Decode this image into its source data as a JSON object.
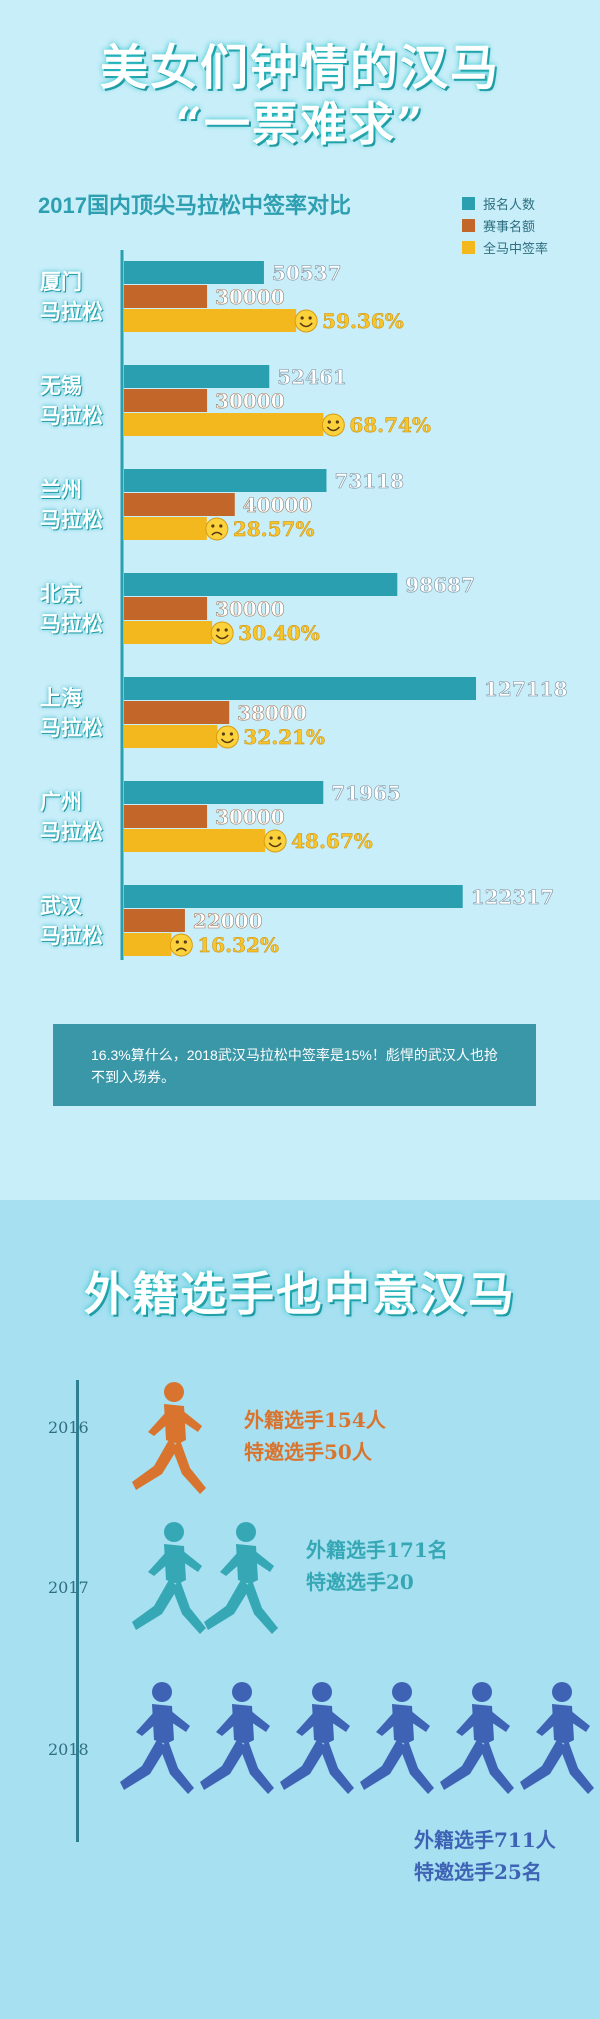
{
  "header": {
    "title_line1": "美女们钟情的汉马",
    "title_line2": "“一票难求”"
  },
  "chart_data": {
    "type": "bar",
    "title": "2017国内顶尖马拉松中签率对比",
    "legend_position": "top-right",
    "categories": [
      [
        "厦门",
        "马拉松"
      ],
      [
        "无锡",
        "马拉松"
      ],
      [
        "兰州",
        "马拉松"
      ],
      [
        "北京",
        "马拉松"
      ],
      [
        "上海",
        "马拉松"
      ],
      [
        "广州",
        "马拉松"
      ],
      [
        "武汉",
        "马拉松"
      ]
    ],
    "series": [
      {
        "name": "报名人数",
        "color": "#2a9fb0",
        "values": [
          50537,
          52461,
          73118,
          98687,
          127118,
          71965,
          122317
        ]
      },
      {
        "name": "赛事名额",
        "color": "#c2662a",
        "values": [
          30000,
          30000,
          40000,
          30000,
          38000,
          30000,
          22000
        ]
      },
      {
        "name": "全马中签率",
        "color": "#f4b81f",
        "values": [
          59.36,
          68.74,
          28.57,
          30.4,
          32.21,
          48.67,
          16.32
        ],
        "labels": [
          "59.36%",
          "68.74%",
          "28.57%",
          "30.40%",
          "32.21%",
          "48.67%",
          "16.32%"
        ]
      }
    ],
    "emoji": [
      "tears-of-joy-face-icon",
      "winking-face-icon",
      "pensive-face-icon",
      "grinning-face-icon",
      "grinning-face-icon",
      "smiling-face-icon",
      "crying-face-icon"
    ]
  },
  "note": {
    "text": "16.3%算什么，2018武汉马拉松中签率是15%！彪悍的武汉人也抢不到入场券。"
  },
  "section2": {
    "title": "外籍选手也中意汉马",
    "years": [
      {
        "year": "2016",
        "runners": 1,
        "color": "#d9742f",
        "lines": [
          "外籍选手154人",
          "特邀选手50人"
        ]
      },
      {
        "year": "2017",
        "runners": 2,
        "color": "#36a8b5",
        "lines": [
          "外籍选手171名",
          "特邀选手20"
        ]
      },
      {
        "year": "2018",
        "runners": 6,
        "color": "#3f63b4",
        "lines": [
          "外籍选手711人",
          "特邀选手25名"
        ]
      }
    ]
  }
}
